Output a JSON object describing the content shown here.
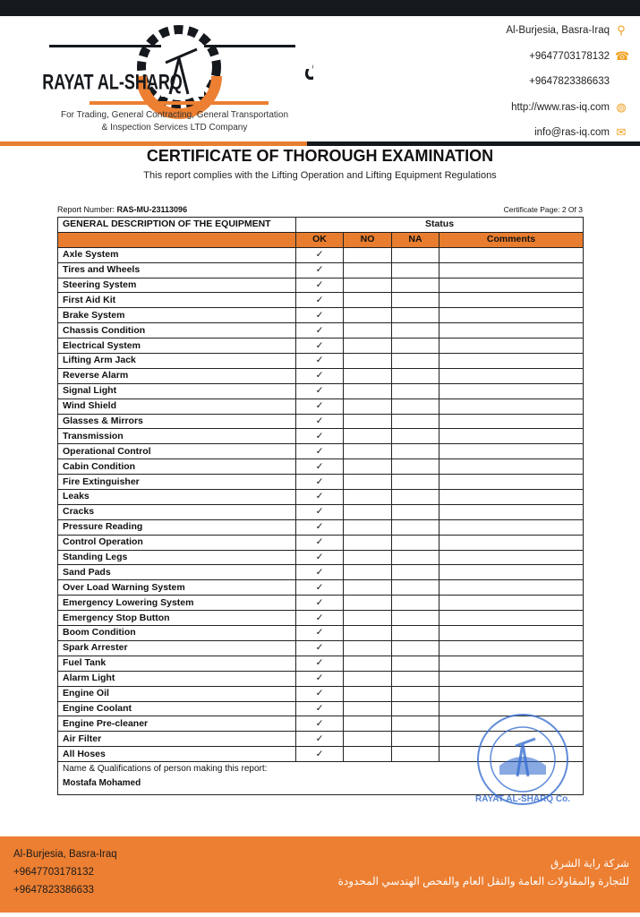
{
  "header": {
    "logo_text_en": "RAYAT AL-SHARQ",
    "logo_text_ar": "راية الشرق",
    "tagline_1": "For Trading, General Contracting, General Transportation",
    "tagline_2": "& Inspection Services LTD Company",
    "contact": [
      {
        "text": "Al-Burjesia, Basra-Iraq",
        "icon": "location-pin-icon"
      },
      {
        "text": "+9647703178132",
        "icon": "phone-icon"
      },
      {
        "text": "+9647823386633",
        "icon": ""
      },
      {
        "text": "http://www.ras-iq.com",
        "icon": "globe-icon"
      },
      {
        "text": "info@ras-iq.com",
        "icon": "envelope-icon"
      }
    ]
  },
  "doc": {
    "title": "CERTIFICATE OF THOROUGH EXAMINATION",
    "subtitle": "This report complies with the Lifting Operation and Lifting Equipment Regulations",
    "report_label": "Report Number: ",
    "report_number": "RAS-MU-23113096",
    "page": "Certificate Page: 2 Of 3"
  },
  "table": {
    "desc_header": "GENERAL DESCRIPTION OF THE EQUIPMENT",
    "status_header": "Status",
    "columns": [
      "OK",
      "NO",
      "NA",
      "Comments"
    ],
    "check": "✓",
    "rows": [
      "Axle System",
      "Tires and Wheels",
      "Steering System",
      "First Aid Kit",
      "Brake System",
      "Chassis Condition",
      "Electrical System",
      "Lifting Arm Jack",
      "Reverse Alarm",
      "Signal Light",
      "Wind Shield",
      "Glasses & Mirrors",
      "Transmission",
      "Operational Control",
      "Cabin Condition",
      "Fire Extinguisher",
      "Leaks",
      "Cracks",
      "Pressure Reading",
      "Control Operation",
      "Standing Legs",
      "Sand Pads",
      "Over Load Warning System",
      "Emergency Lowering System",
      "Emergency Stop Button",
      "Boom Condition",
      "Spark Arrester",
      "Fuel Tank",
      "Alarm Light",
      "Engine Oil",
      "Engine Coolant",
      "Engine Pre-cleaner",
      "Air Filter",
      "All Hoses"
    ],
    "name_label": "Name & Qualifications of person making this report:",
    "name": "Mostafa Mohamed"
  },
  "stamp_text": "RAYAT AL-SHARQ Co.",
  "footer": {
    "lines": [
      "Al-Burjesia, Basra-Iraq",
      "+9647703178132",
      "+9647823386633"
    ],
    "ar_1": "شركة راية الشرق",
    "ar_2": "للتجارة والمقاولات العامة والنقل العام والفحص الهندسي المحدودة"
  },
  "colors": {
    "accent": "#e87d2f",
    "dark": "#15181c",
    "stamp": "#3a6fd0"
  }
}
